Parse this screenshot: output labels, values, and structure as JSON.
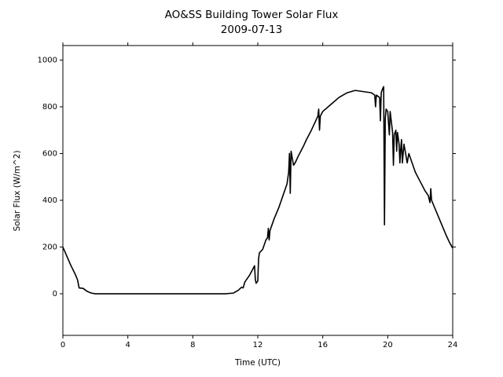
{
  "chart_data": {
    "type": "line",
    "title": "AO&SS Building Tower Solar Flux",
    "subtitle": "2009-07-13",
    "x_label": "Time (UTC)",
    "y_label": "Solar Flux (W/m^2)",
    "color": "#000000",
    "x": [
      0,
      0.25,
      0.5,
      0.75,
      0.9,
      1.0,
      1.25,
      1.5,
      1.75,
      2,
      3,
      4,
      5,
      6,
      7,
      8,
      9,
      10,
      10.5,
      10.8,
      11,
      11.1,
      11.2,
      11.5,
      11.8,
      11.85,
      11.9,
      12.0,
      12.05,
      12.1,
      12.3,
      12.5,
      12.6,
      12.65,
      12.7,
      12.75,
      13,
      13.3,
      13.6,
      13.8,
      13.9,
      13.95,
      14.0,
      14.05,
      14.2,
      14.3,
      14.5,
      14.8,
      15,
      15.3,
      15.5,
      15.7,
      15.75,
      15.8,
      15.85,
      16,
      16.5,
      17,
      17.5,
      18,
      18.5,
      19,
      19.2,
      19.25,
      19.3,
      19.5,
      19.55,
      19.6,
      19.7,
      19.75,
      19.8,
      19.85,
      19.9,
      20.0,
      20.1,
      20.15,
      20.3,
      20.35,
      20.4,
      20.5,
      20.55,
      20.6,
      20.7,
      20.75,
      20.8,
      20.85,
      20.9,
      21.0,
      21.1,
      21.2,
      21.3,
      21.5,
      21.7,
      22.0,
      22.3,
      22.5,
      22.6,
      22.65,
      22.7,
      23.0,
      23.3,
      23.6,
      23.8,
      24
    ],
    "values": [
      200,
      160,
      120,
      85,
      60,
      25,
      23,
      10,
      3,
      0,
      0,
      0,
      0,
      0,
      0,
      0,
      0,
      0,
      3,
      15,
      28,
      25,
      50,
      80,
      120,
      60,
      45,
      55,
      150,
      175,
      190,
      230,
      240,
      280,
      230,
      270,
      320,
      370,
      430,
      470,
      520,
      600,
      430,
      610,
      550,
      560,
      590,
      630,
      660,
      700,
      730,
      760,
      790,
      700,
      760,
      780,
      810,
      840,
      860,
      870,
      865,
      860,
      850,
      800,
      850,
      840,
      740,
      860,
      880,
      886,
      295,
      750,
      790,
      780,
      680,
      780,
      690,
      550,
      680,
      700,
      610,
      690,
      640,
      560,
      620,
      660,
      560,
      640,
      600,
      560,
      600,
      560,
      520,
      480,
      440,
      420,
      390,
      450,
      400,
      350,
      300,
      250,
      220,
      195
    ],
    "xlim": [
      0,
      24
    ],
    "ylim": [
      -178,
      1062
    ],
    "xticks": [
      0,
      4,
      8,
      12,
      16,
      20,
      24
    ],
    "yticks": [
      0,
      200,
      400,
      600,
      800,
      1000
    ]
  }
}
